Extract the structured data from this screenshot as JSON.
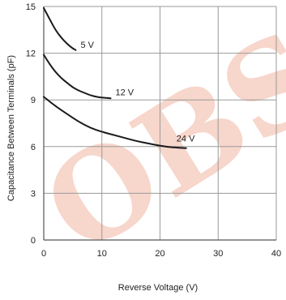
{
  "chart_data": {
    "type": "line",
    "xlabel": "Reverse Voltage (V)",
    "ylabel": "Capacitance Between Terminals (pF)",
    "xlim": [
      0,
      40
    ],
    "ylim": [
      0,
      15
    ],
    "xticks": [
      "0",
      "10",
      "20",
      "30",
      "40"
    ],
    "yticks": [
      "0",
      "3",
      "6",
      "9",
      "12",
      "15"
    ],
    "grid": true,
    "series": [
      {
        "name": "5 V",
        "color": "#1a1a1a",
        "x": [
          0,
          1,
          2,
          3,
          4,
          5,
          5.5
        ],
        "y": [
          14.9,
          14.2,
          13.5,
          13.0,
          12.6,
          12.3,
          12.2
        ]
      },
      {
        "name": "12 V",
        "color": "#1a1a1a",
        "x": [
          0,
          1,
          2,
          3,
          4,
          5,
          6,
          7,
          8,
          9,
          10,
          11.5
        ],
        "y": [
          11.9,
          11.3,
          10.8,
          10.4,
          10.1,
          9.8,
          9.6,
          9.45,
          9.3,
          9.2,
          9.15,
          9.1
        ]
      },
      {
        "name": "24 V",
        "color": "#1a1a1a",
        "x": [
          0,
          2,
          4,
          6,
          8,
          10,
          12,
          14,
          16,
          18,
          20,
          22,
          24.5
        ],
        "y": [
          9.2,
          8.6,
          8.1,
          7.6,
          7.2,
          6.95,
          6.75,
          6.55,
          6.35,
          6.2,
          6.05,
          5.95,
          5.9
        ]
      }
    ],
    "watermark": {
      "text": "OBS",
      "color": "#e88a6a"
    }
  }
}
